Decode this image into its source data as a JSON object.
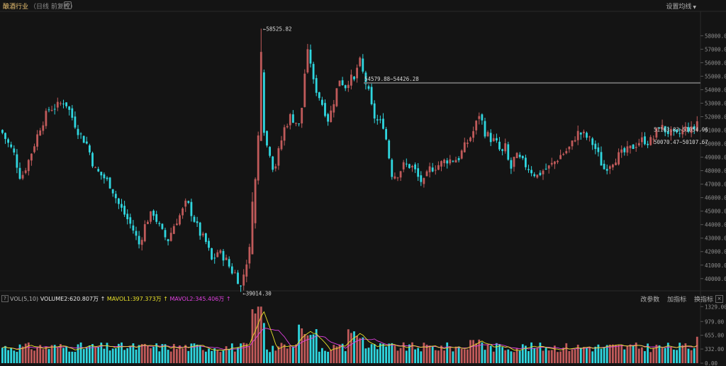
{
  "header": {
    "title": "酿酒行业",
    "subtitle": "（日线 前复权）",
    "ma_setting": "设置均线"
  },
  "volume_panel": {
    "help": "?",
    "name": "VOL(5,10)",
    "volume_label": "VOLUME2:620.80",
    "volume_unit": "7万",
    "mavol1_label": "MAVOL1:397.37",
    "mavol1_unit": "3万",
    "mavol2_label": "MAVOL2:345.40",
    "mavol2_unit": "6万",
    "tools": [
      "改参数",
      "加指标",
      "换指标"
    ],
    "close": "×"
  },
  "colors": {
    "up": "#c05a5a",
    "down": "#2fd6df",
    "ma1": "#e8e02a",
    "ma2": "#e040e0",
    "background": "#141414"
  },
  "chart_data": [
    {
      "type": "candlestick",
      "y_axis_ticks": [
        "58000.0",
        "57000.0",
        "56000.0",
        "55000.0",
        "54000.0",
        "53000.0",
        "52000.0",
        "51000.0",
        "50000.0",
        "49000.0",
        "48000.0",
        "47000.0",
        "46000.0",
        "45000.0",
        "44000.0",
        "43000.0",
        "42000.0",
        "41000.0",
        "40000.0"
      ],
      "ylim": [
        39200,
        59700
      ],
      "annotations": {
        "high": "←58525.82",
        "low": "←39014.30",
        "range": "54579.88~54426.28",
        "right1": "51163.83~51054.96",
        "right2": "50070.47~50107.67"
      },
      "trend_close": [
        [
          0,
          51000
        ],
        [
          8,
          50200
        ],
        [
          18,
          49300
        ],
        [
          28,
          47400
        ],
        [
          40,
          48900
        ],
        [
          55,
          51200
        ],
        [
          68,
          52600
        ],
        [
          80,
          52800
        ],
        [
          90,
          53200
        ],
        [
          100,
          52000
        ],
        [
          110,
          50800
        ],
        [
          122,
          49900
        ],
        [
          132,
          48100
        ],
        [
          145,
          47500
        ],
        [
          155,
          46900
        ],
        [
          165,
          45600
        ],
        [
          175,
          44700
        ],
        [
          185,
          43800
        ],
        [
          195,
          42500
        ],
        [
          205,
          44300
        ],
        [
          215,
          44900
        ],
        [
          225,
          43600
        ],
        [
          235,
          42800
        ],
        [
          245,
          44100
        ],
        [
          255,
          44900
        ],
        [
          262,
          45700
        ],
        [
          270,
          44700
        ],
        [
          280,
          43400
        ],
        [
          290,
          42600
        ],
        [
          298,
          41200
        ],
        [
          305,
          42000
        ],
        [
          315,
          41600
        ],
        [
          325,
          40600
        ],
        [
          332,
          40300
        ],
        [
          338,
          39300
        ],
        [
          345,
          41000
        ],
        [
          352,
          42400
        ],
        [
          357,
          46400
        ],
        [
          362,
          49000
        ],
        [
          366,
          56700
        ],
        [
          372,
          50000
        ],
        [
          378,
          49700
        ],
        [
          385,
          47900
        ],
        [
          392,
          49500
        ],
        [
          400,
          51200
        ],
        [
          408,
          52000
        ],
        [
          415,
          51700
        ],
        [
          422,
          51200
        ],
        [
          428,
          55100
        ],
        [
          434,
          57200
        ],
        [
          440,
          54600
        ],
        [
          448,
          53600
        ],
        [
          455,
          52700
        ],
        [
          462,
          51700
        ],
        [
          470,
          53300
        ],
        [
          478,
          54900
        ],
        [
          485,
          54200
        ],
        [
          492,
          54900
        ],
        [
          498,
          54600
        ],
        [
          505,
          56300
        ],
        [
          512,
          54900
        ],
        [
          518,
          53900
        ],
        [
          525,
          52100
        ],
        [
          532,
          51600
        ],
        [
          540,
          51400
        ],
        [
          546,
          49400
        ],
        [
          552,
          47600
        ],
        [
          560,
          47800
        ],
        [
          568,
          48400
        ],
        [
          575,
          48400
        ],
        [
          582,
          48200
        ],
        [
          590,
          47300
        ],
        [
          597,
          47100
        ],
        [
          604,
          48100
        ],
        [
          612,
          48300
        ],
        [
          620,
          48500
        ],
        [
          628,
          48800
        ],
        [
          636,
          48800
        ],
        [
          645,
          48900
        ],
        [
          652,
          49600
        ],
        [
          660,
          50300
        ],
        [
          668,
          51100
        ],
        [
          675,
          52300
        ],
        [
          682,
          50900
        ],
        [
          690,
          50400
        ],
        [
          698,
          50100
        ],
        [
          706,
          49200
        ],
        [
          712,
          49800
        ],
        [
          718,
          47900
        ],
        [
          725,
          49100
        ],
        [
          732,
          48800
        ],
        [
          740,
          48400
        ],
        [
          748,
          48000
        ],
        [
          756,
          47600
        ],
        [
          764,
          48000
        ],
        [
          772,
          48200
        ],
        [
          780,
          48600
        ],
        [
          788,
          49100
        ],
        [
          796,
          49400
        ],
        [
          804,
          49800
        ],
        [
          812,
          50800
        ],
        [
          820,
          50700
        ],
        [
          828,
          50400
        ],
        [
          836,
          49900
        ],
        [
          842,
          49200
        ],
        [
          850,
          48100
        ],
        [
          858,
          48500
        ],
        [
          866,
          48900
        ],
        [
          874,
          49200
        ],
        [
          882,
          49400
        ],
        [
          890,
          49700
        ],
        [
          898,
          50100
        ],
        [
          906,
          50300
        ],
        [
          914,
          50100
        ],
        [
          922,
          50500
        ],
        [
          928,
          51400
        ],
        [
          936,
          51000
        ],
        [
          944,
          50800
        ],
        [
          952,
          50500
        ],
        [
          960,
          50900
        ],
        [
          968,
          51200
        ],
        [
          976,
          50900
        ],
        [
          983,
          51800
        ]
      ]
    },
    {
      "type": "bar",
      "series": [
        {
          "name": "VOLUME2",
          "values": []
        },
        {
          "name": "MAVOL1",
          "values": []
        },
        {
          "name": "MAVOL2",
          "values": []
        }
      ],
      "y_axis_ticks": [
        "1329.00",
        "979.00",
        "655.00",
        "332.00",
        "0.00"
      ],
      "ylim": [
        0,
        1400
      ],
      "last_volume": 620.8,
      "last_mavol1": 397.37,
      "last_mavol2": 345.4
    }
  ]
}
